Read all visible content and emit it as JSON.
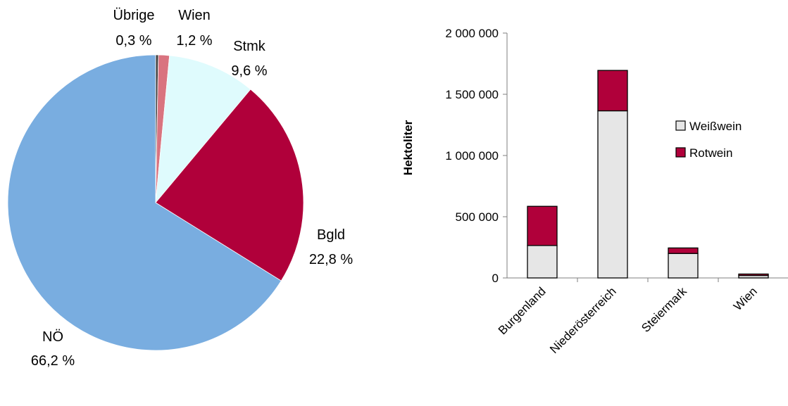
{
  "chart_data": [
    {
      "type": "pie",
      "slices": [
        {
          "label": "Übrige",
          "pct_text": "0,3 %",
          "value": 0.3,
          "color": "#404040"
        },
        {
          "label": "Wien",
          "pct_text": "1,2 %",
          "value": 1.2,
          "color": "#d9737f"
        },
        {
          "label": "Stmk",
          "pct_text": "9,6 %",
          "value": 9.6,
          "color": "#dffbfd"
        },
        {
          "label": "Bgld",
          "pct_text": "22,8 %",
          "value": 22.8,
          "color": "#b0003a"
        },
        {
          "label": "NÖ",
          "pct_text": "66,2 %",
          "value": 66.2,
          "color": "#79ade0"
        }
      ]
    },
    {
      "type": "bar",
      "stacked": true,
      "categories": [
        "Burgenland",
        "Niederösterreich",
        "Steiermark",
        "Wien"
      ],
      "series": [
        {
          "name": "Weißwein",
          "color": "#e6e6e6",
          "values": [
            265000,
            1365000,
            200000,
            20000
          ]
        },
        {
          "name": "Rotwein",
          "color": "#b0003a",
          "values": [
            320000,
            330000,
            45000,
            12000
          ]
        }
      ],
      "ylabel": "Hektoliter",
      "ylim": [
        0,
        2000000
      ],
      "yticks": [
        0,
        500000,
        1000000,
        1500000,
        2000000
      ],
      "ytick_labels": [
        "0",
        "500 000",
        "1 000 000",
        "1 500 000",
        "2 000 000"
      ],
      "legend_position": "right",
      "grid": false
    }
  ]
}
